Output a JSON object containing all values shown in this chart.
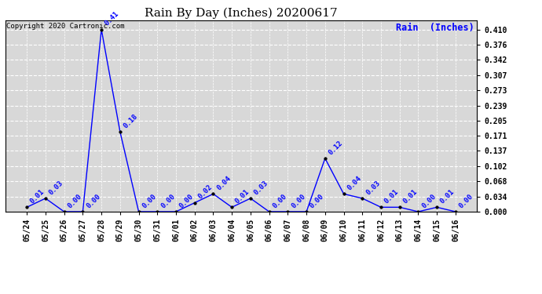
{
  "title": "Rain By Day (Inches) 20200617",
  "copyright_text": "Copyright 2020 Cartronic.com",
  "legend_label": "Rain  (Inches)",
  "line_color": "blue",
  "marker_color": "black",
  "label_color": "blue",
  "background_color": "#d8d8d8",
  "grid_color": "white",
  "x_labels": [
    "05/24",
    "05/25",
    "05/26",
    "05/27",
    "05/28",
    "05/29",
    "05/30",
    "05/31",
    "06/01",
    "06/02",
    "06/03",
    "06/04",
    "06/05",
    "06/06",
    "06/07",
    "06/08",
    "06/09",
    "06/10",
    "06/11",
    "06/12",
    "06/13",
    "06/14",
    "06/15",
    "06/16"
  ],
  "y_values": [
    0.01,
    0.03,
    0.0,
    0.0,
    0.41,
    0.18,
    0.0,
    0.0,
    0.0,
    0.02,
    0.04,
    0.01,
    0.03,
    0.0,
    0.0,
    0.0,
    0.12,
    0.04,
    0.03,
    0.01,
    0.01,
    0.0,
    0.01,
    0.0
  ],
  "y_ticks": [
    0.0,
    0.034,
    0.068,
    0.102,
    0.137,
    0.171,
    0.205,
    0.239,
    0.273,
    0.307,
    0.342,
    0.376,
    0.41
  ],
  "ylim": [
    0.0,
    0.43
  ],
  "title_fontsize": 11,
  "tick_fontsize": 7,
  "label_fontsize": 6.5,
  "copyright_fontsize": 6.5,
  "legend_fontsize": 8.5
}
